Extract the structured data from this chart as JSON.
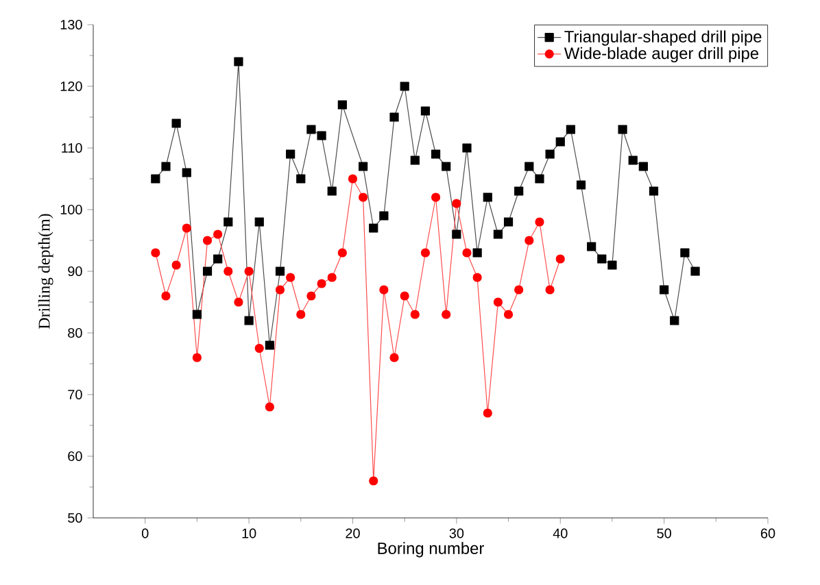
{
  "chart_data": {
    "type": "line",
    "xlabel": "Boring number",
    "ylabel": "Drilling depth(m)",
    "xlim": [
      -5,
      60
    ],
    "ylim": [
      50,
      130
    ],
    "xticks": [
      0,
      10,
      20,
      30,
      40,
      50,
      60
    ],
    "yticks": [
      50,
      60,
      70,
      80,
      90,
      100,
      110,
      120,
      130
    ],
    "grid": false,
    "legend": "top right",
    "line_style": "solid",
    "series": [
      {
        "name": "Triangular-shaped drill pipe",
        "color": "#000000",
        "marker": "square",
        "x": [
          1,
          2,
          3,
          4,
          5,
          6,
          7,
          8,
          9,
          10,
          11,
          12,
          13,
          14,
          15,
          16,
          17,
          18,
          19,
          20,
          21,
          22,
          23,
          24,
          25,
          26,
          27,
          28,
          29,
          30,
          31,
          32,
          33,
          34,
          35,
          36,
          37,
          38,
          39,
          40,
          41,
          42,
          43,
          44,
          45,
          46,
          47,
          48,
          49,
          50,
          51,
          52,
          53
        ],
        "values": [
          105,
          107,
          114,
          106,
          83,
          90,
          92,
          98,
          124,
          82,
          98,
          78,
          90,
          109,
          105,
          113,
          112,
          103,
          117,
          null,
          107,
          97,
          99,
          115,
          120,
          108,
          116,
          109,
          107,
          96,
          110,
          93,
          102,
          96,
          98,
          103,
          107,
          105,
          109,
          111,
          113,
          104,
          94,
          92,
          91,
          113,
          108,
          107,
          103,
          87,
          82,
          93,
          90
        ]
      },
      {
        "name": "Wide-blade auger drill pipe",
        "color": "#ff0000",
        "marker": "circle",
        "x": [
          1,
          2,
          3,
          4,
          5,
          6,
          7,
          8,
          9,
          10,
          11,
          12,
          13,
          14,
          15,
          16,
          17,
          18,
          19,
          20,
          21,
          22,
          23,
          24,
          25,
          26,
          27,
          28,
          29,
          30,
          31,
          32,
          33,
          34,
          35,
          36,
          37,
          38,
          39,
          40
        ],
        "values": [
          93,
          86,
          91,
          97,
          76,
          95,
          96,
          90,
          85,
          90,
          77.5,
          68,
          87,
          89,
          83,
          86,
          88,
          89,
          93,
          105,
          102,
          56,
          87,
          76,
          86,
          83,
          93,
          102,
          83,
          101,
          93,
          89,
          67,
          85,
          83,
          87,
          95,
          98,
          87,
          92
        ]
      }
    ]
  }
}
